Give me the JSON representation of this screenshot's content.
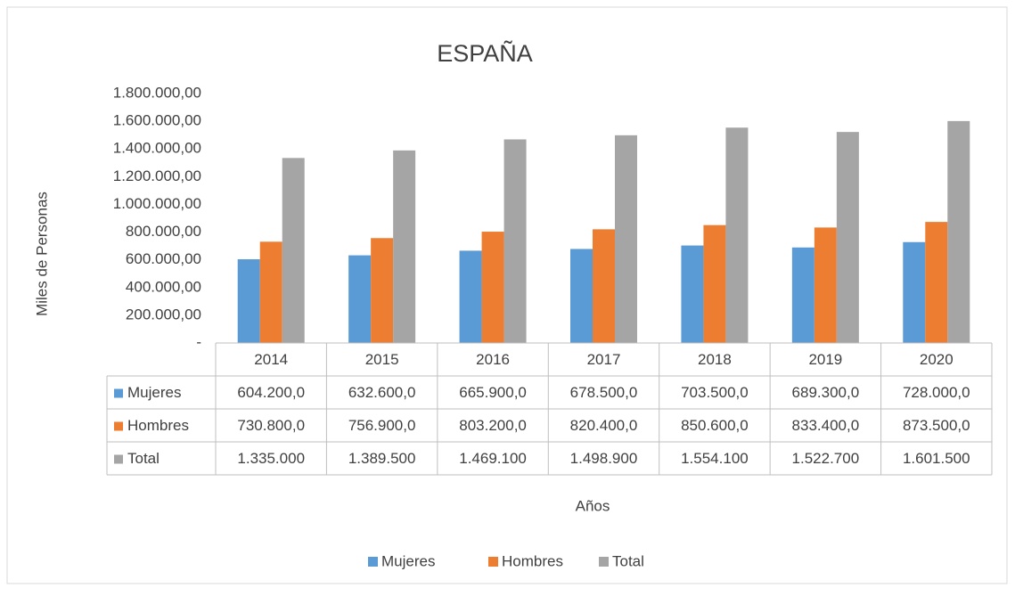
{
  "chart_data": {
    "type": "bar",
    "title": "ESPAÑA",
    "ylabel": "Miles de Personas",
    "xlabel": "Años",
    "categories": [
      "2014",
      "2015",
      "2016",
      "2017",
      "2018",
      "2019",
      "2020"
    ],
    "series": [
      {
        "name": "Mujeres",
        "color": "#5b9bd5",
        "values": [
          604200.0,
          632600.0,
          665900.0,
          678500.0,
          703500.0,
          689300.0,
          728000.0
        ],
        "value_labels": [
          "604.200,0",
          "632.600,0",
          "665.900,0",
          "678.500,0",
          "703.500,0",
          "689.300,0",
          "728.000,0"
        ]
      },
      {
        "name": "Hombres",
        "color": "#ed7d31",
        "values": [
          730800.0,
          756900.0,
          803200.0,
          820400.0,
          850600.0,
          833400.0,
          873500.0
        ],
        "value_labels": [
          "730.800,0",
          "756.900,0",
          "803.200,0",
          "820.400,0",
          "850.600,0",
          "833.400,0",
          "873.500,0"
        ]
      },
      {
        "name": "Total",
        "color": "#a5a5a5",
        "values": [
          1335000,
          1389500,
          1469100,
          1498900,
          1554100,
          1522700,
          1601500
        ],
        "value_labels": [
          "1.335.000",
          "1.389.500",
          "1.469.100",
          "1.498.900",
          "1.554.100",
          "1.522.700",
          "1.601.500"
        ]
      }
    ],
    "ylim": [
      0,
      1800000
    ],
    "yticks": [
      {
        "value": 0,
        "label": "-"
      },
      {
        "value": 200000,
        "label": "200.000,00"
      },
      {
        "value": 400000,
        "label": "400.000,00"
      },
      {
        "value": 600000,
        "label": "600.000,00"
      },
      {
        "value": 800000,
        "label": "800.000,00"
      },
      {
        "value": 1000000,
        "label": "1.000.000,00"
      },
      {
        "value": 1200000,
        "label": "1.200.000,00"
      },
      {
        "value": 1400000,
        "label": "1.400.000,00"
      },
      {
        "value": 1600000,
        "label": "1.600.000,00"
      },
      {
        "value": 1800000,
        "label": "1.800.000,00"
      }
    ],
    "legend": "bottom",
    "grid": false
  }
}
